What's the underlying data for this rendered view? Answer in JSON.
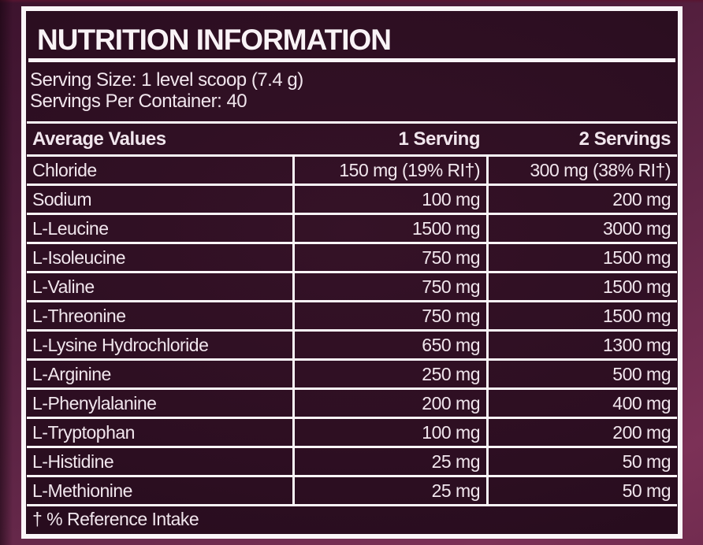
{
  "label": {
    "title": "NUTRITION INFORMATION",
    "serving_size": "Serving Size: 1 level scoop (7.4 g)",
    "servings_per_container": "Servings Per Container: 40",
    "footnote": "† % Reference Intake",
    "colors": {
      "outer_background": "#5f2546",
      "panel_background": "#2c0e21",
      "frame_and_rules": "#faf5f8",
      "text": "#f1e6ed"
    },
    "table": {
      "columns": [
        "Average Values",
        "1 Serving",
        "2 Servings"
      ],
      "rows": [
        {
          "name": "Chloride",
          "serving_1": "150 mg (19% RI†)",
          "serving_2": "300 mg (38% RI†)"
        },
        {
          "name": "Sodium",
          "serving_1": "100 mg",
          "serving_2": "200 mg"
        },
        {
          "name": "L-Leucine",
          "serving_1": "1500 mg",
          "serving_2": "3000 mg"
        },
        {
          "name": "L-Isoleucine",
          "serving_1": "750 mg",
          "serving_2": "1500 mg"
        },
        {
          "name": "L-Valine",
          "serving_1": "750 mg",
          "serving_2": "1500 mg"
        },
        {
          "name": "L-Threonine",
          "serving_1": "750 mg",
          "serving_2": "1500 mg"
        },
        {
          "name": "L-Lysine Hydrochloride",
          "serving_1": "650 mg",
          "serving_2": "1300 mg"
        },
        {
          "name": "L-Arginine",
          "serving_1": "250 mg",
          "serving_2": "500 mg"
        },
        {
          "name": "L-Phenylalanine",
          "serving_1": "200 mg",
          "serving_2": "400 mg"
        },
        {
          "name": "L-Tryptophan",
          "serving_1": "100 mg",
          "serving_2": "200 mg"
        },
        {
          "name": "L-Histidine",
          "serving_1": "25 mg",
          "serving_2": "50 mg"
        },
        {
          "name": "L-Methionine",
          "serving_1": "25 mg",
          "serving_2": "50 mg"
        }
      ]
    }
  }
}
